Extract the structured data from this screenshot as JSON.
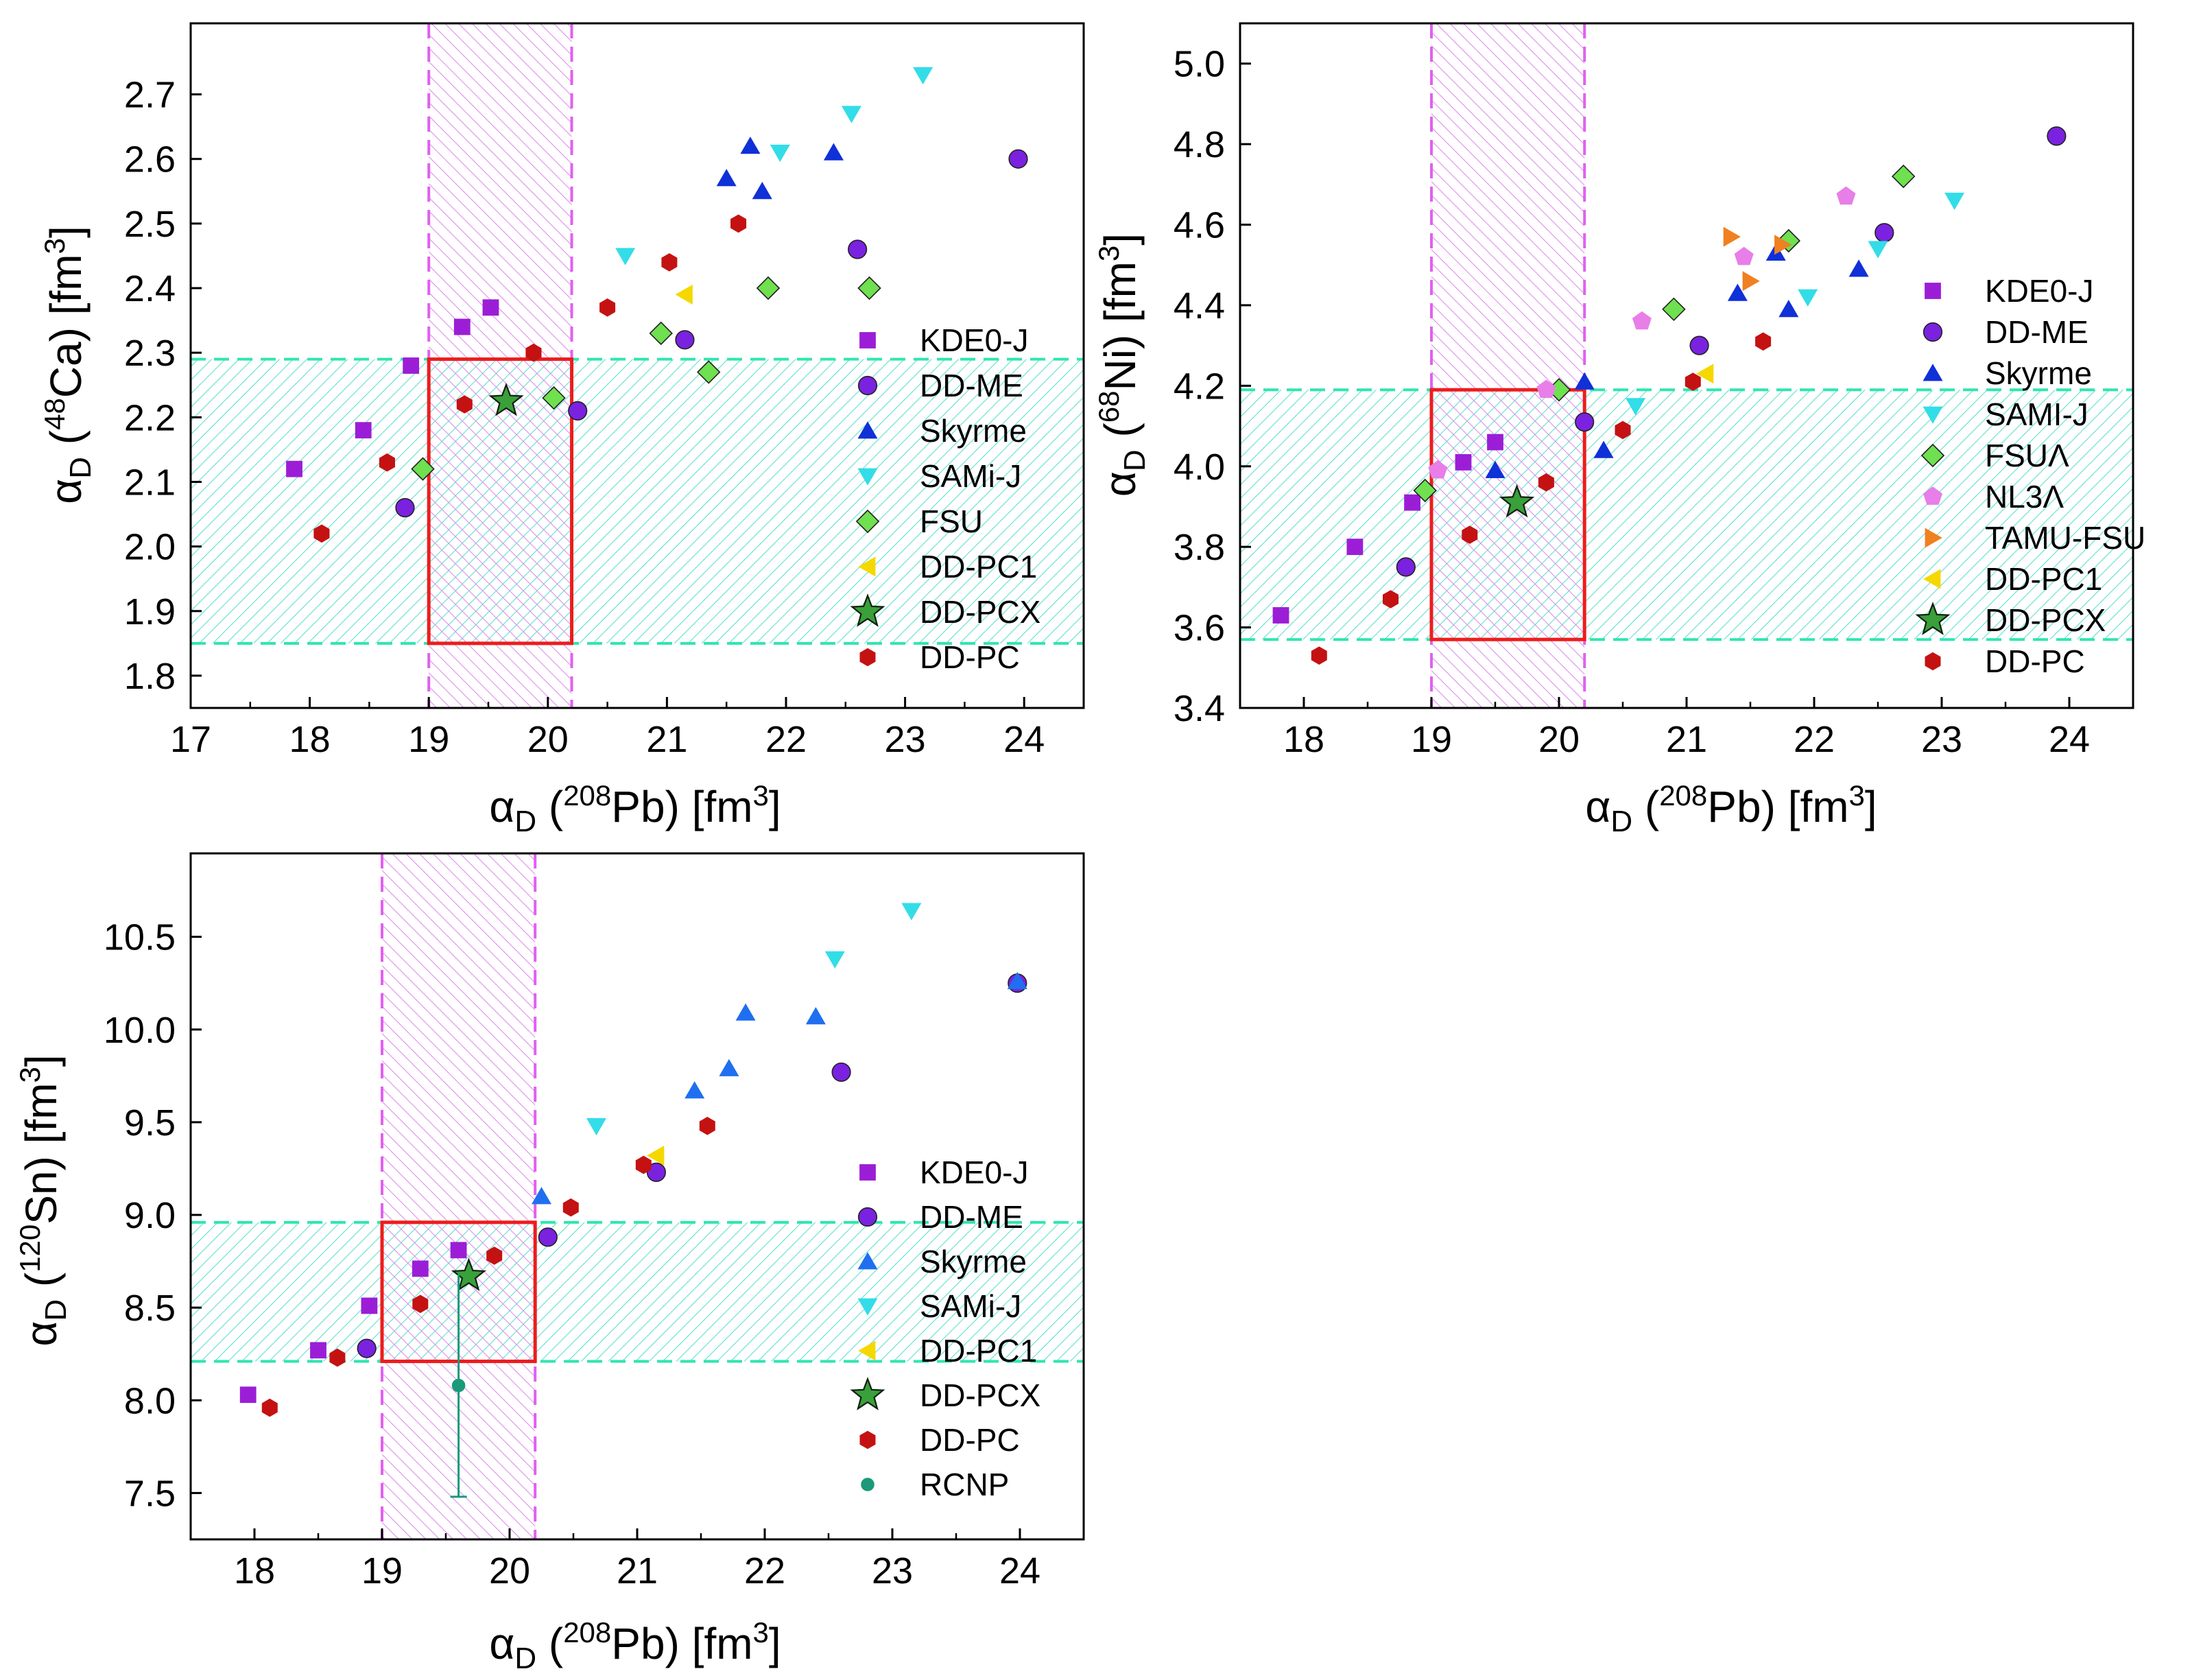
{
  "chart_data": [
    {
      "id": "ca48",
      "type": "scatter",
      "title": "",
      "xlabel": "αD (208Pb) [fm3]",
      "ylabel": "αD (48Ca) [fm3]",
      "xlim": [
        17,
        24.5
      ],
      "ylim": [
        1.75,
        2.81
      ],
      "xticks": [
        17,
        18,
        19,
        20,
        21,
        22,
        23,
        24
      ],
      "yticks": [
        1.8,
        1.9,
        2.0,
        2.1,
        2.2,
        2.3,
        2.4,
        2.5,
        2.6,
        2.7
      ],
      "xtick_labels": [
        "17",
        "18",
        "19",
        "20",
        "21",
        "22",
        "23",
        "24"
      ],
      "ytick_labels": [
        "1.8",
        "1.9",
        "2.0",
        "2.1",
        "2.2",
        "2.3",
        "2.4",
        "2.5",
        "2.6",
        "2.7"
      ],
      "grid": false,
      "legend_position": "right",
      "experimental_x_band": [
        19.0,
        20.2
      ],
      "experimental_y_band": [
        1.85,
        2.29
      ],
      "overlap_box": {
        "x": [
          19.0,
          20.2
        ],
        "y": [
          1.85,
          2.29
        ]
      },
      "series": [
        {
          "name": "KDE0-J",
          "marker": "square",
          "color": "#9b1ed6",
          "x": [
            17.87,
            18.45,
            18.85,
            19.28,
            19.52
          ],
          "y": [
            2.12,
            2.18,
            2.28,
            2.34,
            2.37
          ]
        },
        {
          "name": "DD-ME",
          "marker": "circle",
          "color": "#7a22e0",
          "x": [
            18.8,
            20.25,
            21.15,
            22.6,
            23.95
          ],
          "y": [
            2.06,
            2.21,
            2.32,
            2.46,
            2.6
          ]
        },
        {
          "name": "Skyrme",
          "marker": "triangle-up",
          "color": "#1030d8",
          "x": [
            21.5,
            21.7,
            21.8,
            22.4
          ],
          "y": [
            2.57,
            2.62,
            2.55,
            2.61
          ]
        },
        {
          "name": "SAMi-J",
          "marker": "triangle-down",
          "color": "#33dde8",
          "x": [
            20.65,
            21.95,
            22.55,
            23.15
          ],
          "y": [
            2.45,
            2.61,
            2.67,
            2.73
          ]
        },
        {
          "name": "FSU",
          "marker": "diamond",
          "color": "#6fe050",
          "x": [
            18.95,
            20.05,
            20.95,
            21.35,
            21.85,
            22.7
          ],
          "y": [
            2.12,
            2.23,
            2.33,
            2.27,
            2.4,
            2.4
          ]
        },
        {
          "name": "DD-PC1",
          "marker": "triangle-left",
          "color": "#f5d800",
          "x": [
            21.15
          ],
          "y": [
            2.39
          ]
        },
        {
          "name": "DD-PCX",
          "marker": "star",
          "color": "#3aa03a",
          "x": [
            19.65
          ],
          "y": [
            2.225
          ]
        },
        {
          "name": "DD-PC",
          "marker": "hexagon",
          "color": "#c41212",
          "x": [
            18.1,
            18.65,
            19.3,
            19.88,
            20.5,
            21.02,
            21.6
          ],
          "y": [
            2.02,
            2.13,
            2.22,
            2.3,
            2.37,
            2.44,
            2.5
          ]
        }
      ]
    },
    {
      "id": "ni68",
      "type": "scatter",
      "title": "",
      "xlabel": "αD (208Pb) [fm3]",
      "ylabel": "αD (68Ni) [fm3]",
      "xlim": [
        17.5,
        24.5
      ],
      "ylim": [
        3.4,
        5.1
      ],
      "xticks": [
        18,
        19,
        20,
        21,
        22,
        23,
        24
      ],
      "yticks": [
        3.4,
        3.6,
        3.8,
        4.0,
        4.2,
        4.4,
        4.6,
        4.8,
        5.0
      ],
      "xtick_labels": [
        "18",
        "19",
        "20",
        "21",
        "22",
        "23",
        "24"
      ],
      "ytick_labels": [
        "3.4",
        "3.6",
        "3.8",
        "4.0",
        "4.2",
        "4.4",
        "4.6",
        "4.8",
        "5.0"
      ],
      "grid": false,
      "legend_position": "right",
      "experimental_x_band": [
        19.0,
        20.2
      ],
      "experimental_y_band": [
        3.57,
        4.19
      ],
      "overlap_box": {
        "x": [
          19.0,
          20.2
        ],
        "y": [
          3.57,
          4.19
        ]
      },
      "series": [
        {
          "name": "KDE0-J",
          "marker": "square",
          "color": "#9b1ed6",
          "x": [
            17.82,
            18.4,
            18.85,
            19.25,
            19.5
          ],
          "y": [
            3.63,
            3.8,
            3.91,
            4.01,
            4.06
          ]
        },
        {
          "name": "DD-ME",
          "marker": "circle",
          "color": "#7a22e0",
          "x": [
            18.8,
            20.2,
            21.1,
            22.55,
            23.9
          ],
          "y": [
            3.75,
            4.11,
            4.3,
            4.58,
            4.82
          ]
        },
        {
          "name": "Skyrme",
          "marker": "triangle-up",
          "color": "#1030d8",
          "x": [
            19.5,
            20.2,
            20.35,
            21.4,
            21.7,
            21.8,
            22.35
          ],
          "y": [
            3.99,
            4.21,
            4.04,
            4.43,
            4.53,
            4.39,
            4.49
          ]
        },
        {
          "name": "SAMI-J",
          "marker": "triangle-down",
          "color": "#33dde8",
          "x": [
            20.6,
            21.95,
            22.5,
            23.1
          ],
          "y": [
            4.15,
            4.42,
            4.54,
            4.66
          ]
        },
        {
          "name": "FSUΛ",
          "marker": "diamond",
          "color": "#6fe050",
          "x": [
            18.95,
            20.0,
            20.9,
            21.8,
            22.7
          ],
          "y": [
            3.94,
            4.19,
            4.39,
            4.56,
            4.72
          ]
        },
        {
          "name": "NL3Λ",
          "marker": "pentagon",
          "color": "#e87ee8",
          "x": [
            19.05,
            19.9,
            20.65,
            21.45,
            22.25
          ],
          "y": [
            3.99,
            4.19,
            4.36,
            4.52,
            4.67
          ]
        },
        {
          "name": "TAMU-FSU",
          "marker": "triangle-right",
          "color": "#f08020",
          "x": [
            21.35,
            21.5,
            21.75
          ],
          "y": [
            4.57,
            4.46,
            4.55
          ]
        },
        {
          "name": "DD-PC1",
          "marker": "triangle-left",
          "color": "#f5d800",
          "x": [
            21.15
          ],
          "y": [
            4.23
          ]
        },
        {
          "name": "DD-PCX",
          "marker": "star",
          "color": "#3aa03a",
          "x": [
            19.67
          ],
          "y": [
            3.91
          ]
        },
        {
          "name": "DD-PC",
          "marker": "hexagon",
          "color": "#c41212",
          "x": [
            18.12,
            18.68,
            19.3,
            19.9,
            20.5,
            21.05,
            21.6
          ],
          "y": [
            3.53,
            3.67,
            3.83,
            3.96,
            4.09,
            4.21,
            4.31
          ]
        }
      ]
    },
    {
      "id": "sn120",
      "type": "scatter",
      "title": "",
      "xlabel": "αD (208Pb) [fm3]",
      "ylabel": "αD (120Sn) [fm3]",
      "xlim": [
        17.5,
        24.5
      ],
      "ylim": [
        7.25,
        10.95
      ],
      "xticks": [
        18,
        19,
        20,
        21,
        22,
        23,
        24
      ],
      "yticks": [
        7.5,
        8.0,
        8.5,
        9.0,
        9.5,
        10.0,
        10.5
      ],
      "xtick_labels": [
        "18",
        "19",
        "20",
        "21",
        "22",
        "23",
        "24"
      ],
      "ytick_labels": [
        "7.5",
        "8.0",
        "8.5",
        "9.0",
        "9.5",
        "10.0",
        "10.5"
      ],
      "grid": false,
      "legend_position": "right",
      "experimental_x_band": [
        19.0,
        20.2
      ],
      "experimental_y_band": [
        8.21,
        8.96
      ],
      "overlap_box": {
        "x": [
          19.0,
          20.2
        ],
        "y": [
          8.21,
          8.96
        ]
      },
      "series": [
        {
          "name": "KDE0-J",
          "marker": "square",
          "color": "#9b1ed6",
          "x": [
            17.95,
            18.5,
            18.9,
            19.3,
            19.6
          ],
          "y": [
            8.03,
            8.27,
            8.51,
            8.71,
            8.81
          ]
        },
        {
          "name": "DD-ME",
          "marker": "circle",
          "color": "#7a22e0",
          "x": [
            18.88,
            20.3,
            21.15,
            22.6,
            23.98
          ],
          "y": [
            8.28,
            8.88,
            9.23,
            9.77,
            10.25
          ]
        },
        {
          "name": "Skyrme",
          "marker": "triangle-up",
          "color": "#1f6ff0",
          "x": [
            20.25,
            21.45,
            21.72,
            21.85,
            22.4,
            23.98
          ],
          "y": [
            9.1,
            9.67,
            9.79,
            10.09,
            10.07,
            10.26
          ]
        },
        {
          "name": "SAMi-J",
          "marker": "triangle-down",
          "color": "#33dde8",
          "x": [
            20.68,
            22.55,
            23.15
          ],
          "y": [
            9.48,
            10.38,
            10.64
          ]
        },
        {
          "name": "DD-PC1",
          "marker": "triangle-left",
          "color": "#f5d800",
          "x": [
            21.15
          ],
          "y": [
            9.32
          ]
        },
        {
          "name": "DD-PCX",
          "marker": "star",
          "color": "#3aa03a",
          "x": [
            19.68
          ],
          "y": [
            8.67
          ]
        },
        {
          "name": "DD-PC",
          "marker": "hexagon",
          "color": "#c41212",
          "x": [
            18.12,
            18.65,
            19.3,
            19.88,
            20.48,
            21.05,
            21.55
          ],
          "y": [
            7.96,
            8.23,
            8.52,
            8.78,
            9.04,
            9.27,
            9.48
          ]
        },
        {
          "name": "RCNP",
          "marker": "small-circle",
          "color": "#1a9a78",
          "x": [
            19.6
          ],
          "y": [
            8.08
          ],
          "yerr_low": [
            7.48
          ],
          "yerr_high": [
            8.68
          ]
        }
      ]
    }
  ]
}
